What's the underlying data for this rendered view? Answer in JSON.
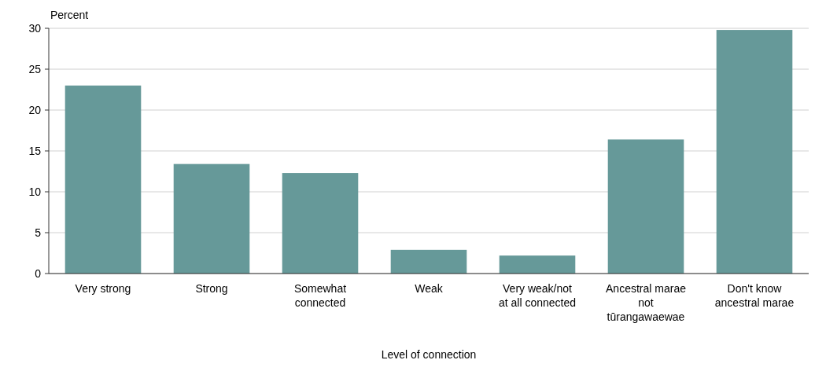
{
  "chart_data": {
    "type": "bar",
    "ylabel": "Percent",
    "xlabel": "Level of connection",
    "categories": [
      "Very strong",
      "Strong",
      "Somewhat\nconnected",
      "Weak",
      "Very weak/not\nat all connected",
      "Ancestral marae\nnot\ntūrangawaewae",
      "Don't know\nancestral marae"
    ],
    "values": [
      23.0,
      13.4,
      12.3,
      2.9,
      2.2,
      16.4,
      29.8
    ],
    "color": "#669999",
    "ylim": [
      0,
      30
    ],
    "yticks": [
      0,
      5,
      10,
      15,
      20,
      25,
      30
    ],
    "grid": "y"
  }
}
